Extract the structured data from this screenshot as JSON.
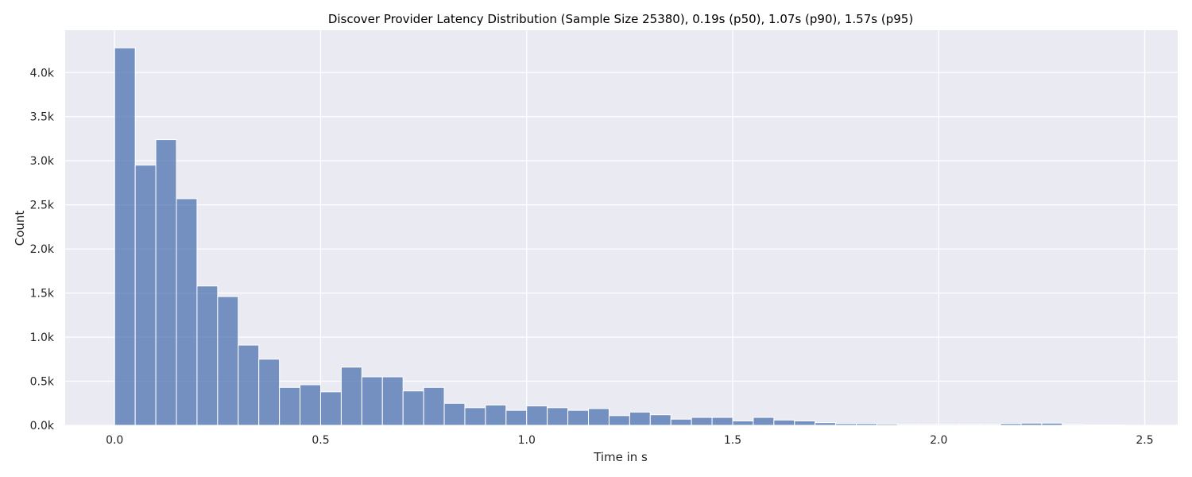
{
  "chart_data": {
    "type": "bar",
    "title": "Discover Provider Latency Distribution (Sample Size 25380), 0.19s (p50), 1.07s (p90), 1.57s (p95)",
    "xlabel": "Time in s",
    "ylabel": "Count",
    "xlim": [
      -0.12,
      2.58
    ],
    "ylim": [
      0,
      4480
    ],
    "grid": true,
    "legend": "none",
    "bar_color": "#4c72b0",
    "background_color": "#eaeaf2",
    "bin_width": 0.05,
    "x_ticks": [
      {
        "value": 0.0,
        "label": "0.0"
      },
      {
        "value": 0.5,
        "label": "0.5"
      },
      {
        "value": 1.0,
        "label": "1.0"
      },
      {
        "value": 1.5,
        "label": "1.5"
      },
      {
        "value": 2.0,
        "label": "2.0"
      },
      {
        "value": 2.5,
        "label": "2.5"
      }
    ],
    "y_ticks": [
      {
        "value": 0,
        "label": "0.0k"
      },
      {
        "value": 500,
        "label": "0.5k"
      },
      {
        "value": 1000,
        "label": "1.0k"
      },
      {
        "value": 1500,
        "label": "1.5k"
      },
      {
        "value": 2000,
        "label": "2.0k"
      },
      {
        "value": 2500,
        "label": "2.5k"
      },
      {
        "value": 3000,
        "label": "3.0k"
      },
      {
        "value": 3500,
        "label": "3.5k"
      },
      {
        "value": 4000,
        "label": "4.0k"
      }
    ],
    "bin_starts": [
      0.0,
      0.05,
      0.1,
      0.15,
      0.2,
      0.25,
      0.3,
      0.35,
      0.4,
      0.45,
      0.5,
      0.55,
      0.6,
      0.65,
      0.7,
      0.75,
      0.8,
      0.85,
      0.9,
      0.95,
      1.0,
      1.05,
      1.1,
      1.15,
      1.2,
      1.25,
      1.3,
      1.35,
      1.4,
      1.45,
      1.5,
      1.55,
      1.6,
      1.65,
      1.7,
      1.75,
      1.8,
      1.85,
      1.9,
      1.95,
      2.0,
      2.05,
      2.1,
      2.15,
      2.2,
      2.25,
      2.3,
      2.35,
      2.4
    ],
    "values": [
      4280,
      2950,
      3240,
      2570,
      1580,
      1460,
      910,
      750,
      430,
      460,
      380,
      660,
      550,
      550,
      390,
      430,
      250,
      200,
      230,
      170,
      220,
      200,
      170,
      190,
      110,
      150,
      120,
      70,
      90,
      90,
      50,
      90,
      60,
      50,
      30,
      20,
      20,
      15,
      10,
      10,
      10,
      10,
      10,
      20,
      25,
      25,
      10,
      5,
      5
    ]
  }
}
